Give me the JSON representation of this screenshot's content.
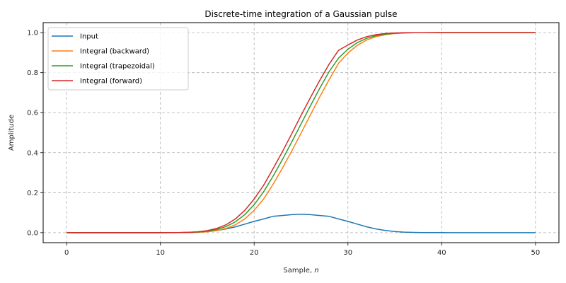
{
  "chart_data": {
    "type": "line",
    "title": "Discrete-time integration of a Gaussian pulse",
    "xlabel": "Sample, n",
    "ylabel": "Amplitude",
    "xlim": [
      -2.5,
      52.5
    ],
    "ylim": [
      -0.05,
      1.05
    ],
    "xticks": [
      0,
      10,
      20,
      30,
      40,
      50
    ],
    "xtick_labels": [
      "0",
      "10",
      "20",
      "30",
      "40",
      "50"
    ],
    "yticks": [
      0.0,
      0.2,
      0.4,
      0.6,
      0.8,
      1.0
    ],
    "ytick_labels": [
      "0.0",
      "0.2",
      "0.4",
      "0.6",
      "0.8",
      "1.0"
    ],
    "grid": true,
    "legend_position": "upper left",
    "x": [
      0,
      1,
      2,
      3,
      4,
      5,
      6,
      7,
      8,
      9,
      10,
      11,
      12,
      13,
      14,
      15,
      16,
      17,
      18,
      19,
      20,
      21,
      22,
      23,
      24,
      25,
      26,
      27,
      28,
      29,
      30,
      31,
      32,
      33,
      34,
      35,
      36,
      37,
      38,
      39,
      40,
      41,
      42,
      43,
      44,
      45,
      46,
      47,
      48,
      49,
      50
    ],
    "series": [
      {
        "name": "Input",
        "color": "#1f77b4",
        "values": [
          0.0,
          0.0,
          0.0,
          0.0,
          0.0,
          0.0,
          0.0,
          0.0,
          0.0,
          0.0,
          0.0,
          0.0001,
          0.0005,
          0.0012,
          0.0028,
          0.0057,
          0.0107,
          0.0186,
          0.0294,
          0.0426,
          0.0564,
          0.0685,
          0.0816,
          0.0857,
          0.09,
          0.0921,
          0.09,
          0.0857,
          0.0816,
          0.0685,
          0.0564,
          0.0426,
          0.0294,
          0.0186,
          0.0107,
          0.0057,
          0.0028,
          0.0012,
          0.0005,
          0.0002,
          0.0001,
          0.0,
          0.0,
          0.0,
          0.0,
          0.0,
          0.0,
          0.0,
          0.0,
          0.0,
          0.0
        ]
      },
      {
        "name": "Integral (backward)",
        "color": "#ff7f0e",
        "values": [
          0.0,
          0.0,
          0.0,
          0.0,
          0.0,
          0.0,
          0.0,
          0.0,
          0.0,
          0.0,
          0.0,
          0.0,
          0.0001,
          0.0006,
          0.0018,
          0.0046,
          0.0103,
          0.021,
          0.0396,
          0.069,
          0.1116,
          0.168,
          0.24,
          0.3216,
          0.4073,
          0.4973,
          0.5894,
          0.6794,
          0.7651,
          0.8467,
          0.898,
          0.9366,
          0.963,
          0.98,
          0.99,
          0.9955,
          0.9982,
          0.9993,
          0.9997,
          0.9999,
          1.0,
          1.0,
          1.0,
          1.0,
          1.0,
          1.0,
          1.0,
          1.0,
          1.0,
          1.0,
          1.0
        ]
      },
      {
        "name": "Integral (trapezoidal)",
        "color": "#2ca02c",
        "values": [
          0.0,
          0.0,
          0.0,
          0.0,
          0.0,
          0.0,
          0.0,
          0.0,
          0.0,
          0.0,
          0.0,
          0.0001,
          0.0004,
          0.0012,
          0.0032,
          0.0074,
          0.0157,
          0.0303,
          0.0543,
          0.0903,
          0.1398,
          0.204,
          0.2808,
          0.3645,
          0.4523,
          0.5434,
          0.6344,
          0.7223,
          0.8059,
          0.8723,
          0.9173,
          0.9498,
          0.9715,
          0.985,
          0.9928,
          0.9969,
          0.9988,
          0.9996,
          0.9998,
          0.9999,
          1.0,
          1.0,
          1.0,
          1.0,
          1.0,
          1.0,
          1.0,
          1.0,
          1.0,
          1.0,
          1.0
        ]
      },
      {
        "name": "Integral (forward)",
        "color": "#d62728",
        "values": [
          0.0,
          0.0,
          0.0,
          0.0,
          0.0,
          0.0,
          0.0,
          0.0,
          0.0,
          0.0,
          0.0,
          0.0001,
          0.0006,
          0.0018,
          0.0046,
          0.0103,
          0.021,
          0.0396,
          0.069,
          0.1116,
          0.168,
          0.2365,
          0.3181,
          0.4038,
          0.4938,
          0.5859,
          0.6759,
          0.7616,
          0.8432,
          0.9117,
          0.9381,
          0.963,
          0.98,
          0.99,
          0.9955,
          0.9982,
          0.9993,
          0.9997,
          0.9999,
          1.0,
          1.0,
          1.0,
          1.0,
          1.0,
          1.0,
          1.0,
          1.0,
          1.0,
          1.0,
          1.0,
          1.0
        ]
      }
    ]
  },
  "legend": {
    "items": [
      {
        "label": "Input",
        "color": "#1f77b4"
      },
      {
        "label": "Integral (backward)",
        "color": "#ff7f0e"
      },
      {
        "label": "Integral (trapezoidal)",
        "color": "#2ca02c"
      },
      {
        "label": "Integral (forward)",
        "color": "#d62728"
      }
    ]
  },
  "axes": {
    "xlabel_text": "Sample, ",
    "xlabel_var": "n",
    "ylabel": "Amplitude",
    "title": "Discrete-time integration of a Gaussian pulse"
  }
}
